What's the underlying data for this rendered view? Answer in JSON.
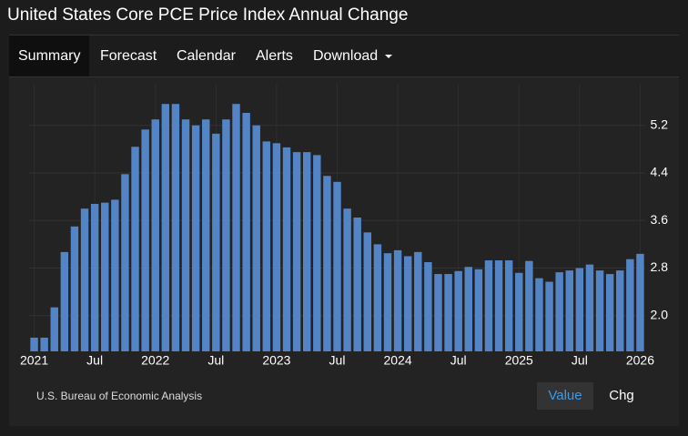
{
  "header": {
    "title": "United States Core PCE Price Index Annual Change"
  },
  "nav": {
    "items": [
      "Summary",
      "Forecast",
      "Calendar",
      "Alerts",
      "Download"
    ]
  },
  "chart_data": {
    "type": "bar",
    "color": "#5385c6",
    "grid": true,
    "categories": [
      "2021",
      null,
      null,
      null,
      null,
      null,
      "Jul",
      null,
      null,
      null,
      null,
      null,
      "2022",
      null,
      null,
      null,
      null,
      null,
      "Jul",
      null,
      null,
      null,
      null,
      null,
      "2023",
      null,
      null,
      null,
      null,
      null,
      "Jul",
      null,
      null,
      null,
      null,
      null,
      "2024",
      null,
      null,
      null,
      null,
      null,
      "Jul",
      null,
      null,
      null,
      null,
      null,
      "2025",
      null,
      null,
      null,
      null,
      null,
      "Jul",
      null,
      null,
      null,
      null,
      null,
      "2026"
    ],
    "values": [
      1.63,
      1.63,
      2.14,
      3.07,
      3.5,
      3.8,
      3.88,
      3.9,
      3.95,
      4.38,
      4.84,
      5.13,
      5.3,
      5.56,
      5.56,
      5.3,
      5.2,
      5.3,
      5.06,
      5.3,
      5.56,
      5.41,
      5.2,
      4.93,
      4.9,
      4.83,
      4.75,
      4.75,
      4.7,
      4.35,
      4.25,
      3.8,
      3.65,
      3.4,
      3.2,
      3.05,
      3.1,
      3.0,
      3.07,
      2.9,
      2.7,
      2.7,
      2.75,
      2.82,
      2.78,
      2.93,
      2.93,
      2.93,
      2.72,
      2.92,
      2.63,
      2.57,
      2.73,
      2.76,
      2.8,
      2.86,
      2.76,
      2.7,
      2.76,
      2.95,
      3.04
    ],
    "ylim": [
      1.4,
      5.9
    ],
    "yticks": [
      {
        "value": 2,
        "label": "2.0"
      },
      2.8,
      3.6,
      4.4,
      5.2
    ]
  },
  "footer": {
    "source": "U.S. Bureau of Economic Analysis",
    "buttons": [
      "Value",
      "Chg"
    ]
  }
}
